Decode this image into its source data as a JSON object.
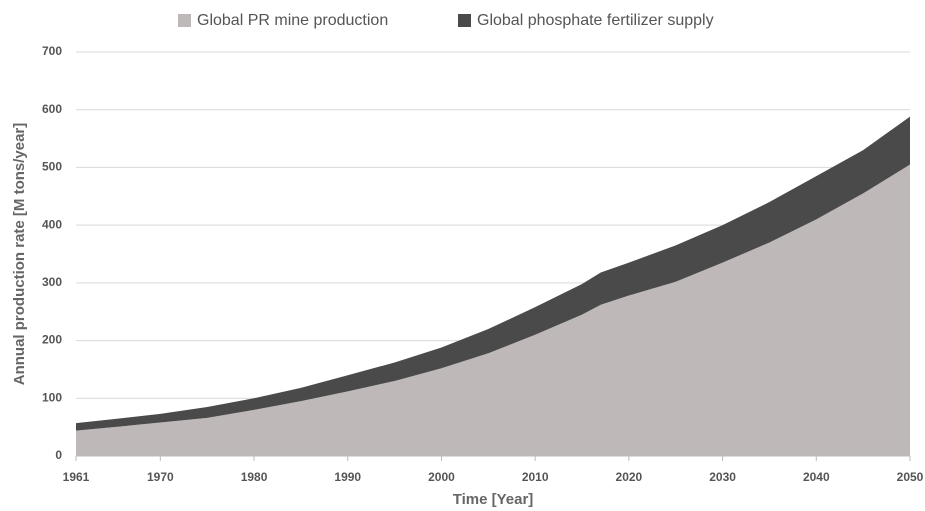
{
  "chart_data": {
    "type": "area",
    "stacked": true,
    "x_label": "Time [Year]",
    "y_label": "Annual production rate [M tons/year]",
    "x": [
      1961,
      1965,
      1970,
      1975,
      1980,
      1985,
      1990,
      1995,
      2000,
      2005,
      2010,
      2015,
      2017,
      2020,
      2025,
      2030,
      2035,
      2040,
      2045,
      2050
    ],
    "series": [
      {
        "name": "Global PR mine production",
        "color": "#bfb8b8",
        "values": [
          44,
          50,
          58,
          66,
          80,
          95,
          112,
          130,
          152,
          178,
          210,
          245,
          262,
          278,
          302,
          335,
          370,
          410,
          455,
          505
        ]
      },
      {
        "name": "Global phosphate fertilizer supply",
        "color": "#4a4a4a",
        "values": [
          13,
          14,
          15,
          19,
          20,
          23,
          28,
          32,
          36,
          42,
          48,
          53,
          56,
          57,
          63,
          65,
          70,
          75,
          75,
          83
        ]
      }
    ],
    "xlim": [
      1961,
      2050
    ],
    "xticks": [
      1961,
      1970,
      1980,
      1990,
      2000,
      2010,
      2020,
      2030,
      2040,
      2050
    ],
    "ylim": [
      0,
      700
    ],
    "yticks": [
      0,
      100,
      200,
      300,
      400,
      500,
      600,
      700
    ],
    "grid": true,
    "legend": "top"
  }
}
